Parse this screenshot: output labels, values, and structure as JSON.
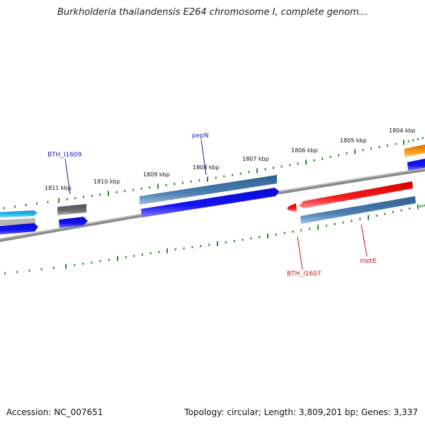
{
  "title": "Burkholderia thailandensis E264 chromosome I, complete genom...",
  "colors": {
    "backbone": "#8a8a8a",
    "ticks": "#2a8a2a",
    "label_blue": "#1a1aaa",
    "label_red": "#cc1111",
    "gene_cyan": "#2ab0e0",
    "gene_blue": "#1010e8",
    "gene_steel": "#4a7db0",
    "gene_gray": "#666666",
    "gene_red": "#ee1111",
    "gene_orange": "#ff9a10"
  },
  "ruler_labels": [
    "1811 kbp",
    "1810 kbp",
    "1809 kbp",
    "1808 kbp",
    "1807 kbp",
    "1806 kbp",
    "1805 kbp",
    "1804 kbp"
  ],
  "gene_labels": {
    "bth_i1609": "BTH_I1609",
    "pepn": "pepN",
    "bth_i1607": "BTH_I1607",
    "mete": "metE"
  },
  "footer": {
    "accession": "Accession: NC_007651",
    "summary": "Topology: circular; Length: 3,809,201 bp; Genes: 3,337"
  }
}
